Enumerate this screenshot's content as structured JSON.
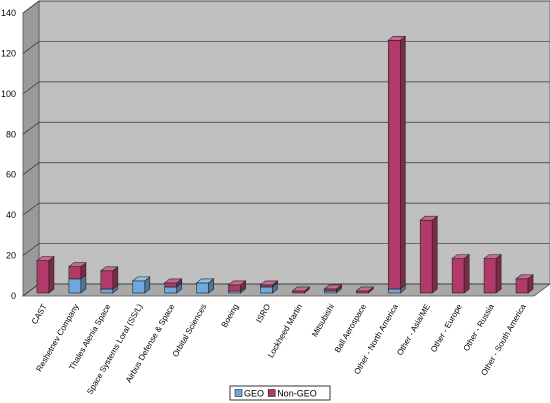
{
  "chart_data": {
    "type": "bar",
    "stacked": true,
    "categories": [
      "CAST",
      "Reshetnev Company",
      "Thales Alenia Space",
      "Space Systems Loral (SS/L)",
      "Airbus Defense & Space",
      "Orbital Sciences",
      "Boeing",
      "ISRO",
      "Lockheed Martin",
      "Mitsubishi",
      "Ball Aerospace",
      "Other - North America",
      "Other - Asia/ME",
      "Other - Europe",
      "Other - Russia",
      "Other - South America"
    ],
    "series": [
      {
        "name": "GEO",
        "color": "#6fa8dc",
        "values": [
          0,
          7,
          2,
          6,
          3,
          5,
          1,
          3,
          0,
          1,
          0,
          2,
          0,
          0,
          0,
          0
        ]
      },
      {
        "name": "Non-GEO",
        "color": "#b23a6b",
        "values": [
          16,
          6,
          9,
          0,
          2,
          0,
          3,
          1,
          1,
          1,
          1,
          123,
          36,
          17,
          17,
          7
        ]
      }
    ],
    "ylim": [
      0,
      140
    ],
    "yticks": [
      0,
      20,
      40,
      60,
      80,
      100,
      120,
      140
    ],
    "grid": true,
    "legend": "bottom"
  }
}
